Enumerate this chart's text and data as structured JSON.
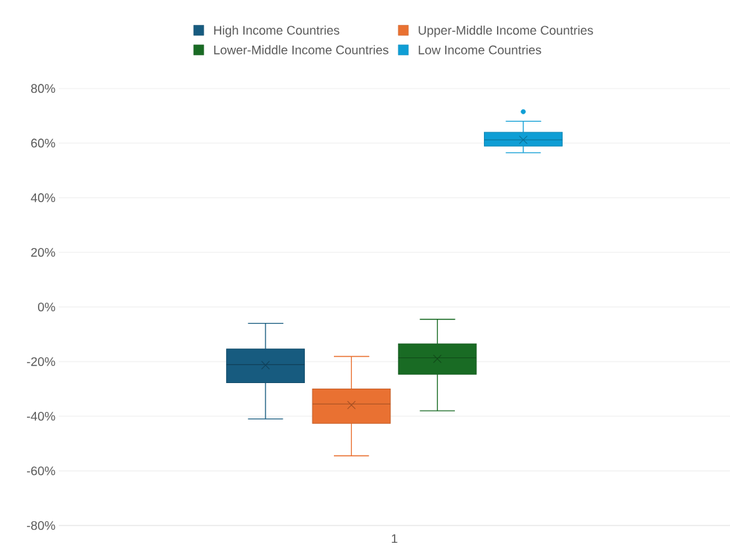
{
  "chart_data": {
    "type": "box",
    "categories": [
      "1"
    ],
    "series": [
      {
        "name": "High Income Countries",
        "color": "#175b7f",
        "boxes": [
          {
            "low": -41,
            "q1": -27.7,
            "median": -21.1,
            "q3": -15.4,
            "high": -6,
            "mean": -21.3
          }
        ]
      },
      {
        "name": "Upper-Middle Income Countries",
        "color": "#e97132",
        "boxes": [
          {
            "low": -54.5,
            "q1": -42.6,
            "median": -35.5,
            "q3": -30,
            "high": -18.1,
            "mean": -35.9
          }
        ]
      },
      {
        "name": "Lower-Middle Income Countries",
        "color": "#196b24",
        "boxes": [
          {
            "low": -38,
            "q1": -24.6,
            "median": -18.6,
            "q3": -13.5,
            "high": -4.5,
            "mean": -19
          }
        ]
      },
      {
        "name": "Low Income Countries",
        "color": "#0f9ed5",
        "boxes": [
          {
            "low": 56.5,
            "q1": 58.9,
            "median": 61.2,
            "q3": 64,
            "high": 68,
            "mean": 61.2,
            "outliers": [
              71.5
            ]
          }
        ]
      }
    ],
    "ylim": [
      -80,
      80
    ],
    "yticks": [
      {
        "value": -80,
        "label": "-80%"
      },
      {
        "value": -60,
        "label": "-60%"
      },
      {
        "value": -40,
        "label": "-40%"
      },
      {
        "value": -20,
        "label": "-20%"
      },
      {
        "value": 0,
        "label": "0%"
      },
      {
        "value": 20,
        "label": "20%"
      },
      {
        "value": 40,
        "label": "40%"
      },
      {
        "value": 60,
        "label": "60%"
      },
      {
        "value": 80,
        "label": "80%"
      }
    ],
    "grid": "y",
    "legend": "top",
    "marker": "cross"
  }
}
